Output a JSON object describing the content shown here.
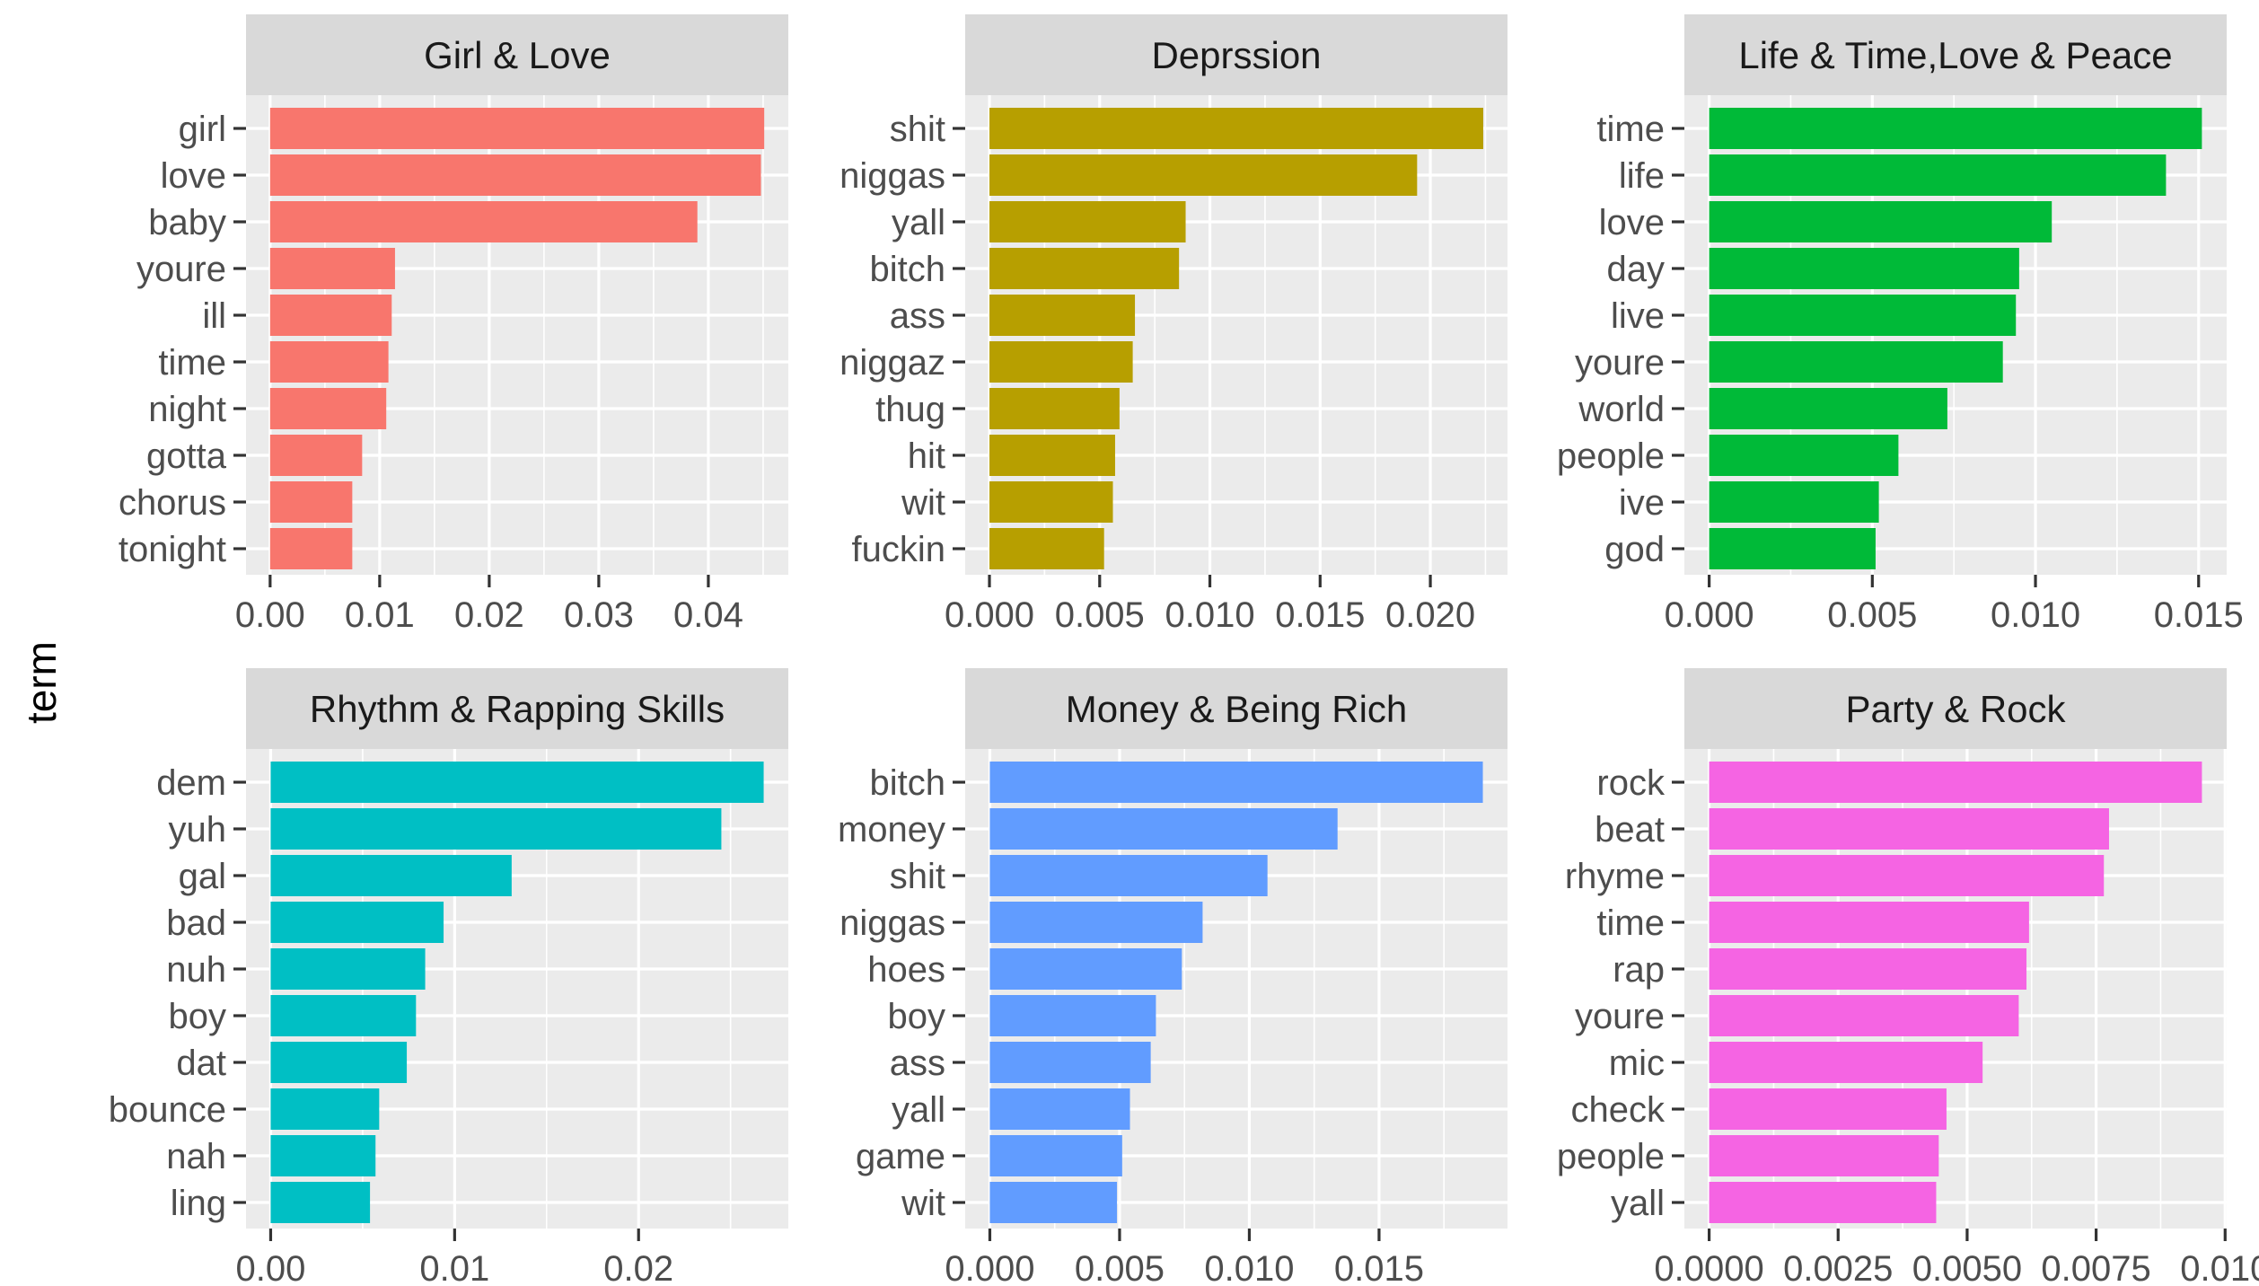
{
  "chart_data": {
    "type": "bar",
    "orientation": "horizontal",
    "ylabel": "term",
    "grid": true,
    "legend": "none",
    "panels": [
      {
        "title": "Girl & Love",
        "color": "#F8766D",
        "categories": [
          "girl",
          "love",
          "baby",
          "youre",
          "ill",
          "time",
          "night",
          "gotta",
          "chorus",
          "tonight"
        ],
        "values": [
          0.0451,
          0.0448,
          0.039,
          0.0114,
          0.0111,
          0.0108,
          0.0106,
          0.0084,
          0.0075,
          0.0075
        ],
        "xlim": [
          -0.0022,
          0.0473
        ],
        "xticks": [
          0.0,
          0.01,
          0.02,
          0.03,
          0.04
        ],
        "xtick_labels": [
          "0.00",
          "0.01",
          "0.02",
          "0.03",
          "0.04"
        ]
      },
      {
        "title": "Deprssion",
        "color": "#B79F00",
        "categories": [
          "shit",
          "niggas",
          "yall",
          "bitch",
          "ass",
          "niggaz",
          "thug",
          "hit",
          "wit",
          "fuckin"
        ],
        "values": [
          0.0224,
          0.0194,
          0.0089,
          0.0086,
          0.0066,
          0.0065,
          0.0059,
          0.0057,
          0.0056,
          0.0052
        ],
        "xlim": [
          -0.0011,
          0.0235
        ],
        "xticks": [
          0.0,
          0.005,
          0.01,
          0.015,
          0.02
        ],
        "xtick_labels": [
          "0.000",
          "0.005",
          "0.010",
          "0.015",
          "0.020"
        ]
      },
      {
        "title": "Life & Time,Love & Peace",
        "color": "#00BA38",
        "categories": [
          "time",
          "life",
          "love",
          "day",
          "live",
          "youre",
          "world",
          "people",
          "ive",
          "god"
        ],
        "values": [
          0.0151,
          0.014,
          0.0105,
          0.0095,
          0.0094,
          0.009,
          0.0073,
          0.0058,
          0.0052,
          0.0051
        ],
        "xlim": [
          -0.00076,
          0.01586
        ],
        "xticks": [
          0.0,
          0.005,
          0.01,
          0.015
        ],
        "xtick_labels": [
          "0.000",
          "0.005",
          "0.010",
          "0.015"
        ]
      },
      {
        "title": "Rhythm & Rapping Skills",
        "color": "#00BFC4",
        "categories": [
          "dem",
          "yuh",
          "gal",
          "bad",
          "nuh",
          "boy",
          "dat",
          "bounce",
          "nah",
          "ling"
        ],
        "values": [
          0.0268,
          0.0245,
          0.0131,
          0.0094,
          0.0084,
          0.0079,
          0.0074,
          0.0059,
          0.0057,
          0.0054
        ],
        "xlim": [
          -0.00134,
          0.02814
        ],
        "xticks": [
          0.0,
          0.01,
          0.02
        ],
        "xtick_labels": [
          "0.00",
          "0.01",
          "0.02"
        ]
      },
      {
        "title": "Money & Being Rich",
        "color": "#619CFF",
        "categories": [
          "bitch",
          "money",
          "shit",
          "niggas",
          "hoes",
          "boy",
          "ass",
          "yall",
          "game",
          "wit"
        ],
        "values": [
          0.019,
          0.0134,
          0.0107,
          0.0082,
          0.0074,
          0.0064,
          0.0062,
          0.0054,
          0.0051,
          0.0049
        ],
        "xlim": [
          -0.00095,
          0.01995
        ],
        "xticks": [
          0.0,
          0.005,
          0.01,
          0.015
        ],
        "xtick_labels": [
          "0.000",
          "0.005",
          "0.010",
          "0.015"
        ]
      },
      {
        "title": "Party & Rock",
        "color": "#F564E3",
        "categories": [
          "rock",
          "beat",
          "rhyme",
          "time",
          "rap",
          "youre",
          "mic",
          "check",
          "people",
          "yall"
        ],
        "values": [
          0.00955,
          0.00775,
          0.00765,
          0.0062,
          0.00615,
          0.006,
          0.0053,
          0.0046,
          0.00445,
          0.0044
        ],
        "xlim": [
          -0.00048,
          0.01003
        ],
        "xticks": [
          0.0,
          0.0025,
          0.005,
          0.0075,
          0.01
        ],
        "xtick_labels": [
          "0.0000",
          "0.0025",
          "0.0050",
          "0.0075",
          "0.010"
        ]
      }
    ]
  }
}
